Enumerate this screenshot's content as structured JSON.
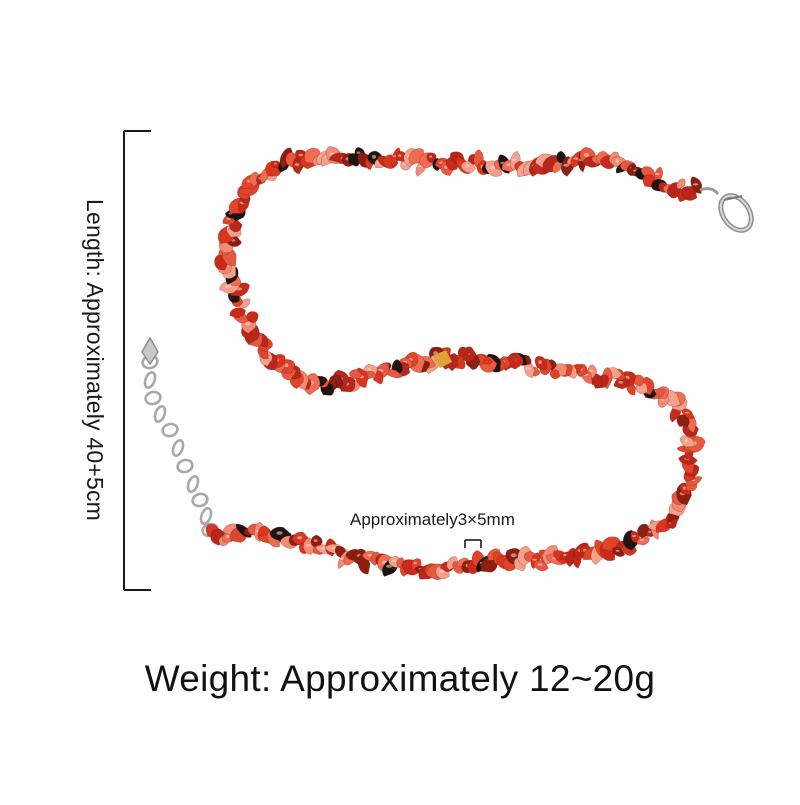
{
  "labels": {
    "length": "Length:  Approximately 40+5cm",
    "chip_size": "Approximately3×5mm",
    "weight": "Weight:  Approximately 12~20g"
  },
  "colors": {
    "background": "#ffffff",
    "bead_primary": "#d9351f",
    "bead_light": "#f28a74",
    "bead_dark": "#8c1e12",
    "bead_black": "#1c1512",
    "metal": "#b4b4b4",
    "text": "#1a1a1a"
  },
  "icons": [
    "lobster-clasp-icon",
    "extender-chain-icon",
    "dimension-bracket-icon"
  ]
}
